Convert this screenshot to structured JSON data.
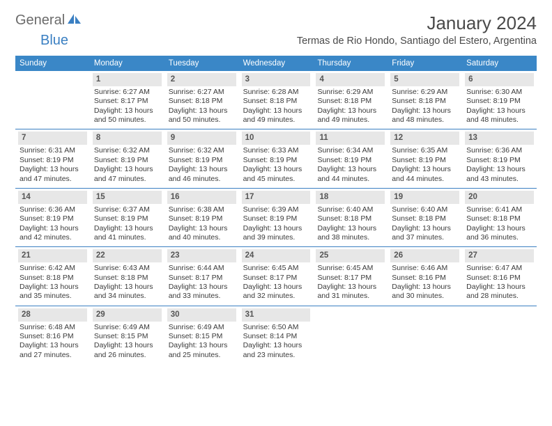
{
  "logo": {
    "part1": "General",
    "part2": "Blue"
  },
  "title": "January 2024",
  "location": "Termas de Rio Hondo, Santiago del Estero, Argentina",
  "dayHeaders": [
    "Sunday",
    "Monday",
    "Tuesday",
    "Wednesday",
    "Thursday",
    "Friday",
    "Saturday"
  ],
  "colors": {
    "headerBg": "#3a87c7",
    "accent": "#3a7fc2",
    "daynumBg": "#e7e7e7"
  },
  "weeks": [
    [
      {
        "day": "",
        "sunrise": "",
        "sunset": "",
        "daylight": ""
      },
      {
        "day": "1",
        "sunrise": "Sunrise: 6:27 AM",
        "sunset": "Sunset: 8:17 PM",
        "daylight": "Daylight: 13 hours and 50 minutes."
      },
      {
        "day": "2",
        "sunrise": "Sunrise: 6:27 AM",
        "sunset": "Sunset: 8:18 PM",
        "daylight": "Daylight: 13 hours and 50 minutes."
      },
      {
        "day": "3",
        "sunrise": "Sunrise: 6:28 AM",
        "sunset": "Sunset: 8:18 PM",
        "daylight": "Daylight: 13 hours and 49 minutes."
      },
      {
        "day": "4",
        "sunrise": "Sunrise: 6:29 AM",
        "sunset": "Sunset: 8:18 PM",
        "daylight": "Daylight: 13 hours and 49 minutes."
      },
      {
        "day": "5",
        "sunrise": "Sunrise: 6:29 AM",
        "sunset": "Sunset: 8:18 PM",
        "daylight": "Daylight: 13 hours and 48 minutes."
      },
      {
        "day": "6",
        "sunrise": "Sunrise: 6:30 AM",
        "sunset": "Sunset: 8:19 PM",
        "daylight": "Daylight: 13 hours and 48 minutes."
      }
    ],
    [
      {
        "day": "7",
        "sunrise": "Sunrise: 6:31 AM",
        "sunset": "Sunset: 8:19 PM",
        "daylight": "Daylight: 13 hours and 47 minutes."
      },
      {
        "day": "8",
        "sunrise": "Sunrise: 6:32 AM",
        "sunset": "Sunset: 8:19 PM",
        "daylight": "Daylight: 13 hours and 47 minutes."
      },
      {
        "day": "9",
        "sunrise": "Sunrise: 6:32 AM",
        "sunset": "Sunset: 8:19 PM",
        "daylight": "Daylight: 13 hours and 46 minutes."
      },
      {
        "day": "10",
        "sunrise": "Sunrise: 6:33 AM",
        "sunset": "Sunset: 8:19 PM",
        "daylight": "Daylight: 13 hours and 45 minutes."
      },
      {
        "day": "11",
        "sunrise": "Sunrise: 6:34 AM",
        "sunset": "Sunset: 8:19 PM",
        "daylight": "Daylight: 13 hours and 44 minutes."
      },
      {
        "day": "12",
        "sunrise": "Sunrise: 6:35 AM",
        "sunset": "Sunset: 8:19 PM",
        "daylight": "Daylight: 13 hours and 44 minutes."
      },
      {
        "day": "13",
        "sunrise": "Sunrise: 6:36 AM",
        "sunset": "Sunset: 8:19 PM",
        "daylight": "Daylight: 13 hours and 43 minutes."
      }
    ],
    [
      {
        "day": "14",
        "sunrise": "Sunrise: 6:36 AM",
        "sunset": "Sunset: 8:19 PM",
        "daylight": "Daylight: 13 hours and 42 minutes."
      },
      {
        "day": "15",
        "sunrise": "Sunrise: 6:37 AM",
        "sunset": "Sunset: 8:19 PM",
        "daylight": "Daylight: 13 hours and 41 minutes."
      },
      {
        "day": "16",
        "sunrise": "Sunrise: 6:38 AM",
        "sunset": "Sunset: 8:19 PM",
        "daylight": "Daylight: 13 hours and 40 minutes."
      },
      {
        "day": "17",
        "sunrise": "Sunrise: 6:39 AM",
        "sunset": "Sunset: 8:19 PM",
        "daylight": "Daylight: 13 hours and 39 minutes."
      },
      {
        "day": "18",
        "sunrise": "Sunrise: 6:40 AM",
        "sunset": "Sunset: 8:18 PM",
        "daylight": "Daylight: 13 hours and 38 minutes."
      },
      {
        "day": "19",
        "sunrise": "Sunrise: 6:40 AM",
        "sunset": "Sunset: 8:18 PM",
        "daylight": "Daylight: 13 hours and 37 minutes."
      },
      {
        "day": "20",
        "sunrise": "Sunrise: 6:41 AM",
        "sunset": "Sunset: 8:18 PM",
        "daylight": "Daylight: 13 hours and 36 minutes."
      }
    ],
    [
      {
        "day": "21",
        "sunrise": "Sunrise: 6:42 AM",
        "sunset": "Sunset: 8:18 PM",
        "daylight": "Daylight: 13 hours and 35 minutes."
      },
      {
        "day": "22",
        "sunrise": "Sunrise: 6:43 AM",
        "sunset": "Sunset: 8:18 PM",
        "daylight": "Daylight: 13 hours and 34 minutes."
      },
      {
        "day": "23",
        "sunrise": "Sunrise: 6:44 AM",
        "sunset": "Sunset: 8:17 PM",
        "daylight": "Daylight: 13 hours and 33 minutes."
      },
      {
        "day": "24",
        "sunrise": "Sunrise: 6:45 AM",
        "sunset": "Sunset: 8:17 PM",
        "daylight": "Daylight: 13 hours and 32 minutes."
      },
      {
        "day": "25",
        "sunrise": "Sunrise: 6:45 AM",
        "sunset": "Sunset: 8:17 PM",
        "daylight": "Daylight: 13 hours and 31 minutes."
      },
      {
        "day": "26",
        "sunrise": "Sunrise: 6:46 AM",
        "sunset": "Sunset: 8:16 PM",
        "daylight": "Daylight: 13 hours and 30 minutes."
      },
      {
        "day": "27",
        "sunrise": "Sunrise: 6:47 AM",
        "sunset": "Sunset: 8:16 PM",
        "daylight": "Daylight: 13 hours and 28 minutes."
      }
    ],
    [
      {
        "day": "28",
        "sunrise": "Sunrise: 6:48 AM",
        "sunset": "Sunset: 8:16 PM",
        "daylight": "Daylight: 13 hours and 27 minutes."
      },
      {
        "day": "29",
        "sunrise": "Sunrise: 6:49 AM",
        "sunset": "Sunset: 8:15 PM",
        "daylight": "Daylight: 13 hours and 26 minutes."
      },
      {
        "day": "30",
        "sunrise": "Sunrise: 6:49 AM",
        "sunset": "Sunset: 8:15 PM",
        "daylight": "Daylight: 13 hours and 25 minutes."
      },
      {
        "day": "31",
        "sunrise": "Sunrise: 6:50 AM",
        "sunset": "Sunset: 8:14 PM",
        "daylight": "Daylight: 13 hours and 23 minutes."
      },
      {
        "day": "",
        "sunrise": "",
        "sunset": "",
        "daylight": ""
      },
      {
        "day": "",
        "sunrise": "",
        "sunset": "",
        "daylight": ""
      },
      {
        "day": "",
        "sunrise": "",
        "sunset": "",
        "daylight": ""
      }
    ]
  ]
}
